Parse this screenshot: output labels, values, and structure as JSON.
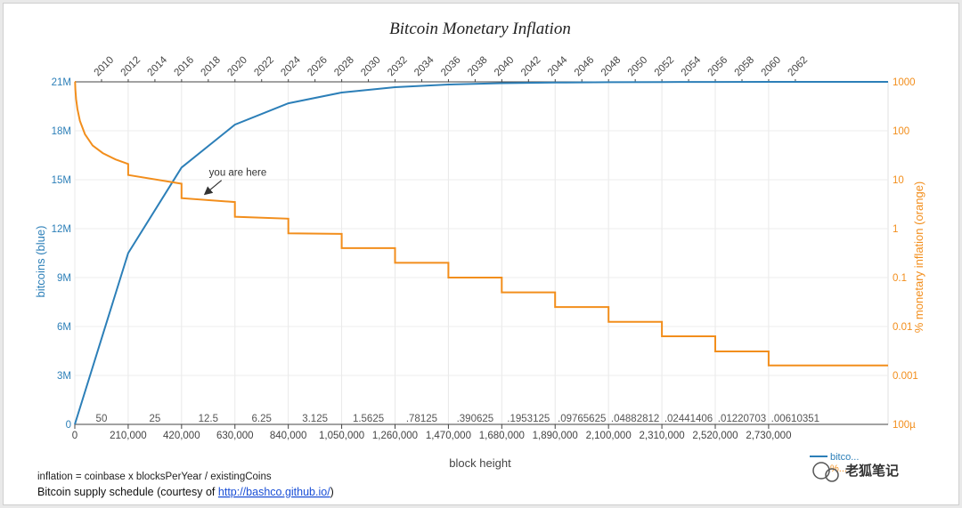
{
  "chart_data": {
    "type": "line",
    "title": "Bitcoin Monetary Inflation",
    "xlabel": "block height",
    "ylabel_left": "bitcoins (blue)",
    "ylabel_right": "% monetary inflation (orange)",
    "x_range": [
      0,
      3200000
    ],
    "y_left_range": [
      0,
      21000000
    ],
    "y_right_range_log": [
      0.0001,
      1000
    ],
    "x_ticks": [
      {
        "v": 0,
        "label": "0"
      },
      {
        "v": 210000,
        "label": "210,000"
      },
      {
        "v": 420000,
        "label": "420,000"
      },
      {
        "v": 630000,
        "label": "630,000"
      },
      {
        "v": 840000,
        "label": "840,000"
      },
      {
        "v": 1050000,
        "label": "1,050,000"
      },
      {
        "v": 1260000,
        "label": "1,260,000"
      },
      {
        "v": 1470000,
        "label": "1,470,000"
      },
      {
        "v": 1680000,
        "label": "1,680,000"
      },
      {
        "v": 1890000,
        "label": "1,890,000"
      },
      {
        "v": 2100000,
        "label": "2,100,000"
      },
      {
        "v": 2310000,
        "label": "2,310,000"
      },
      {
        "v": 2520000,
        "label": "2,520,000"
      },
      {
        "v": 2730000,
        "label": "2,730,000"
      }
    ],
    "y_left_ticks": [
      {
        "v": 0,
        "label": "0"
      },
      {
        "v": 3000000,
        "label": "3M"
      },
      {
        "v": 6000000,
        "label": "6M"
      },
      {
        "v": 9000000,
        "label": "9M"
      },
      {
        "v": 12000000,
        "label": "12M"
      },
      {
        "v": 15000000,
        "label": "15M"
      },
      {
        "v": 18000000,
        "label": "18M"
      },
      {
        "v": 21000000,
        "label": "21M"
      }
    ],
    "y_right_ticks": [
      {
        "v": 0.0001,
        "label": "100µ"
      },
      {
        "v": 0.001,
        "label": "0.001"
      },
      {
        "v": 0.01,
        "label": "0.01"
      },
      {
        "v": 0.1,
        "label": "0.1"
      },
      {
        "v": 1,
        "label": "1"
      },
      {
        "v": 10,
        "label": "10"
      },
      {
        "v": 100,
        "label": "100"
      },
      {
        "v": 1000,
        "label": "1000"
      }
    ],
    "top_year_ticks": [
      {
        "v": 0,
        "label": "2010"
      },
      {
        "v": 105000,
        "label": "2012"
      },
      {
        "v": 210000,
        "label": "2014"
      },
      {
        "v": 315000,
        "label": "2016"
      },
      {
        "v": 420000,
        "label": "2018"
      },
      {
        "v": 525000,
        "label": "2020"
      },
      {
        "v": 630000,
        "label": "2022"
      },
      {
        "v": 735000,
        "label": "2024"
      },
      {
        "v": 840000,
        "label": "2026"
      },
      {
        "v": 945000,
        "label": "2028"
      },
      {
        "v": 1050000,
        "label": "2030"
      },
      {
        "v": 1155000,
        "label": "2032"
      },
      {
        "v": 1260000,
        "label": "2034"
      },
      {
        "v": 1365000,
        "label": "2036"
      },
      {
        "v": 1470000,
        "label": "2038"
      },
      {
        "v": 1575000,
        "label": "2040"
      },
      {
        "v": 1680000,
        "label": "2042"
      },
      {
        "v": 1785000,
        "label": "2044"
      },
      {
        "v": 1890000,
        "label": "2046"
      },
      {
        "v": 1995000,
        "label": "2048"
      },
      {
        "v": 2100000,
        "label": "2050"
      },
      {
        "v": 2205000,
        "label": "2052"
      },
      {
        "v": 2310000,
        "label": "2054"
      },
      {
        "v": 2415000,
        "label": "2056"
      },
      {
        "v": 2520000,
        "label": "2058"
      },
      {
        "v": 2625000,
        "label": "2060"
      },
      {
        "v": 2730000,
        "label": "2062"
      }
    ],
    "reward_labels": [
      "50",
      "25",
      "12.5",
      "6.25",
      "3.125",
      "1.5625",
      ".78125",
      ".390625",
      ".1953125",
      ".09765625",
      ".04882812",
      ".02441406",
      ".01220703",
      ".00610351"
    ],
    "series": [
      {
        "name": "bitcoins",
        "axis": "left",
        "color": "#2c7fb8",
        "x": [
          0,
          210000,
          420000,
          630000,
          840000,
          1050000,
          1260000,
          1470000,
          1680000,
          1890000,
          2100000,
          2310000,
          2520000,
          2730000,
          2940000,
          3200000
        ],
        "y": [
          0,
          10500000,
          15750000,
          18375000,
          19687500,
          20343750,
          20671875,
          20835937,
          20917968,
          20958984,
          20979492,
          20989746,
          20994873,
          20997436,
          20998718,
          20999500
        ]
      },
      {
        "name": "inflation",
        "axis": "right",
        "color": "#f28e1c",
        "curve_x": [
          1000,
          2000,
          5000,
          10000,
          20000,
          40000,
          70000,
          110000,
          160000,
          210000
        ],
        "curve_y": [
          1000,
          700,
          450,
          280,
          160,
          85,
          50,
          35,
          26,
          21
        ],
        "steps": [
          {
            "x0": 210000,
            "x1": 420000,
            "y_start": 12.5,
            "y_end": 8.3
          },
          {
            "x0": 420000,
            "x1": 630000,
            "y_start": 4.2,
            "y_end": 3.5
          },
          {
            "x0": 630000,
            "x1": 840000,
            "y_start": 1.75,
            "y_end": 1.6
          },
          {
            "x0": 840000,
            "x1": 1050000,
            "y_start": 0.8,
            "y_end": 0.78
          },
          {
            "x0": 1050000,
            "x1": 1260000,
            "y_start": 0.4,
            "y_end": 0.4
          },
          {
            "x0": 1260000,
            "x1": 1470000,
            "y_start": 0.2,
            "y_end": 0.2
          },
          {
            "x0": 1470000,
            "x1": 1680000,
            "y_start": 0.1,
            "y_end": 0.1
          },
          {
            "x0": 1680000,
            "x1": 1890000,
            "y_start": 0.05,
            "y_end": 0.05
          },
          {
            "x0": 1890000,
            "x1": 2100000,
            "y_start": 0.025,
            "y_end": 0.025
          },
          {
            "x0": 2100000,
            "x1": 2310000,
            "y_start": 0.0125,
            "y_end": 0.0125
          },
          {
            "x0": 2310000,
            "x1": 2520000,
            "y_start": 0.0063,
            "y_end": 0.0063
          },
          {
            "x0": 2520000,
            "x1": 2730000,
            "y_start": 0.0031,
            "y_end": 0.0031
          },
          {
            "x0": 2730000,
            "x1": 2940000,
            "y_start": 0.0016,
            "y_end": 0.0016
          },
          {
            "x0": 2940000,
            "x1": 3200000,
            "y_start": 0.0016,
            "y_end": 0.0016
          }
        ]
      }
    ],
    "annotation": {
      "text": "you are here",
      "x": 430000,
      "y_right": 4.2
    },
    "grid": true,
    "legend_partial": [
      "bitco...",
      "%..."
    ]
  },
  "notes": {
    "formula": "inflation = coinbase x blocksPerYear / existingCoins",
    "credit_prefix": "Bitcoin supply schedule (courtesy of ",
    "credit_link": "http://bashco.github.io/",
    "credit_suffix": ")"
  },
  "watermark": "老狐笔记"
}
